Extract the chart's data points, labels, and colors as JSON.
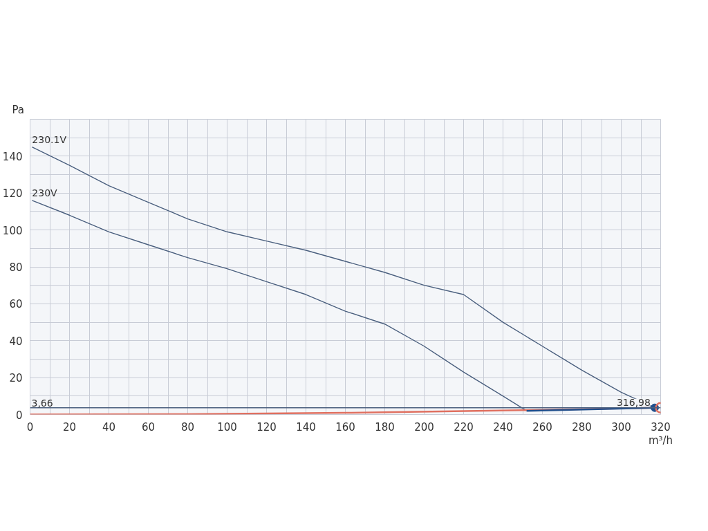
{
  "chart_data": {
    "type": "line",
    "xlabel": "m³/h",
    "ylabel": "Pa",
    "xlim": [
      0,
      320
    ],
    "ylim": [
      0,
      160
    ],
    "xticks": [
      0,
      {
        "value": 10,
        "label": null
      },
      20,
      {
        "value": 30,
        "label": null
      },
      40,
      {
        "value": 50,
        "label": null
      },
      60,
      {
        "value": 70,
        "label": null
      },
      80,
      {
        "value": 90,
        "label": null
      },
      100,
      {
        "value": 110,
        "label": null
      },
      120,
      {
        "value": 130,
        "label": null
      },
      140,
      {
        "value": 150,
        "label": null
      },
      160,
      {
        "value": 170,
        "label": null
      },
      180,
      {
        "value": 190,
        "label": null
      },
      200,
      {
        "value": 210,
        "label": null
      },
      220,
      {
        "value": 230,
        "label": null
      },
      240,
      {
        "value": 250,
        "label": null
      },
      260,
      {
        "value": 270,
        "label": null
      },
      280,
      {
        "value": 290,
        "label": null
      },
      300,
      {
        "value": 310,
        "label": null
      },
      320
    ],
    "yticks": [
      0,
      {
        "value": 10,
        "label": null
      },
      20,
      {
        "value": 30,
        "label": null
      },
      40,
      {
        "value": 50,
        "label": null
      },
      60,
      {
        "value": 70,
        "label": null
      },
      80,
      {
        "value": 90,
        "label": null
      },
      100,
      {
        "value": 110,
        "label": null
      },
      120,
      {
        "value": 130,
        "label": null
      },
      140,
      {
        "value": 150,
        "label": null
      },
      {
        "value": 160,
        "label": null
      }
    ],
    "grid": true,
    "line_style": "solid",
    "series": [
      {
        "name": "230.1V",
        "color": "#4a5f7e",
        "x": [
          1,
          20,
          40,
          60,
          80,
          100,
          120,
          140,
          160,
          180,
          200,
          220,
          240,
          260,
          280,
          300,
          317
        ],
        "values": [
          145,
          135,
          124,
          115,
          106,
          99,
          94,
          89,
          83,
          77,
          70,
          65,
          50,
          37,
          24,
          12,
          3.66
        ]
      },
      {
        "name": "230V",
        "color": "#4a5f7e",
        "x": [
          1,
          20,
          40,
          60,
          80,
          100,
          120,
          140,
          160,
          180,
          200,
          220,
          240,
          252
        ],
        "values": [
          116,
          108,
          99,
          92,
          85,
          79,
          72,
          65,
          56,
          49,
          37,
          23,
          10,
          2
        ]
      },
      {
        "color": "#e07060",
        "x": [
          0,
          80,
          160,
          250,
          317
        ],
        "values": [
          0,
          0.2,
          0.9,
          2.3,
          3.66
        ]
      },
      {
        "color": "#1f4e8c",
        "x": [
          252,
          317
        ],
        "values": [
          2,
          3.66
        ]
      },
      {
        "type": "scatter",
        "marker": "circle",
        "color": "#1f4e8c",
        "x": [
          317
        ],
        "values": [
          3.66
        ]
      },
      {
        "type": "scatter",
        "marker": "circle_hollow",
        "color": "#e07060",
        "x": [
          320
        ],
        "values": [
          3.66
        ]
      }
    ],
    "ref_lines": [
      {
        "axis": "y",
        "value": 3.66,
        "label": "3,66",
        "color": "#4a5f7e"
      }
    ],
    "annotations": [
      {
        "text": "316,98",
        "x": 316.98,
        "y": 3.66
      }
    ]
  }
}
